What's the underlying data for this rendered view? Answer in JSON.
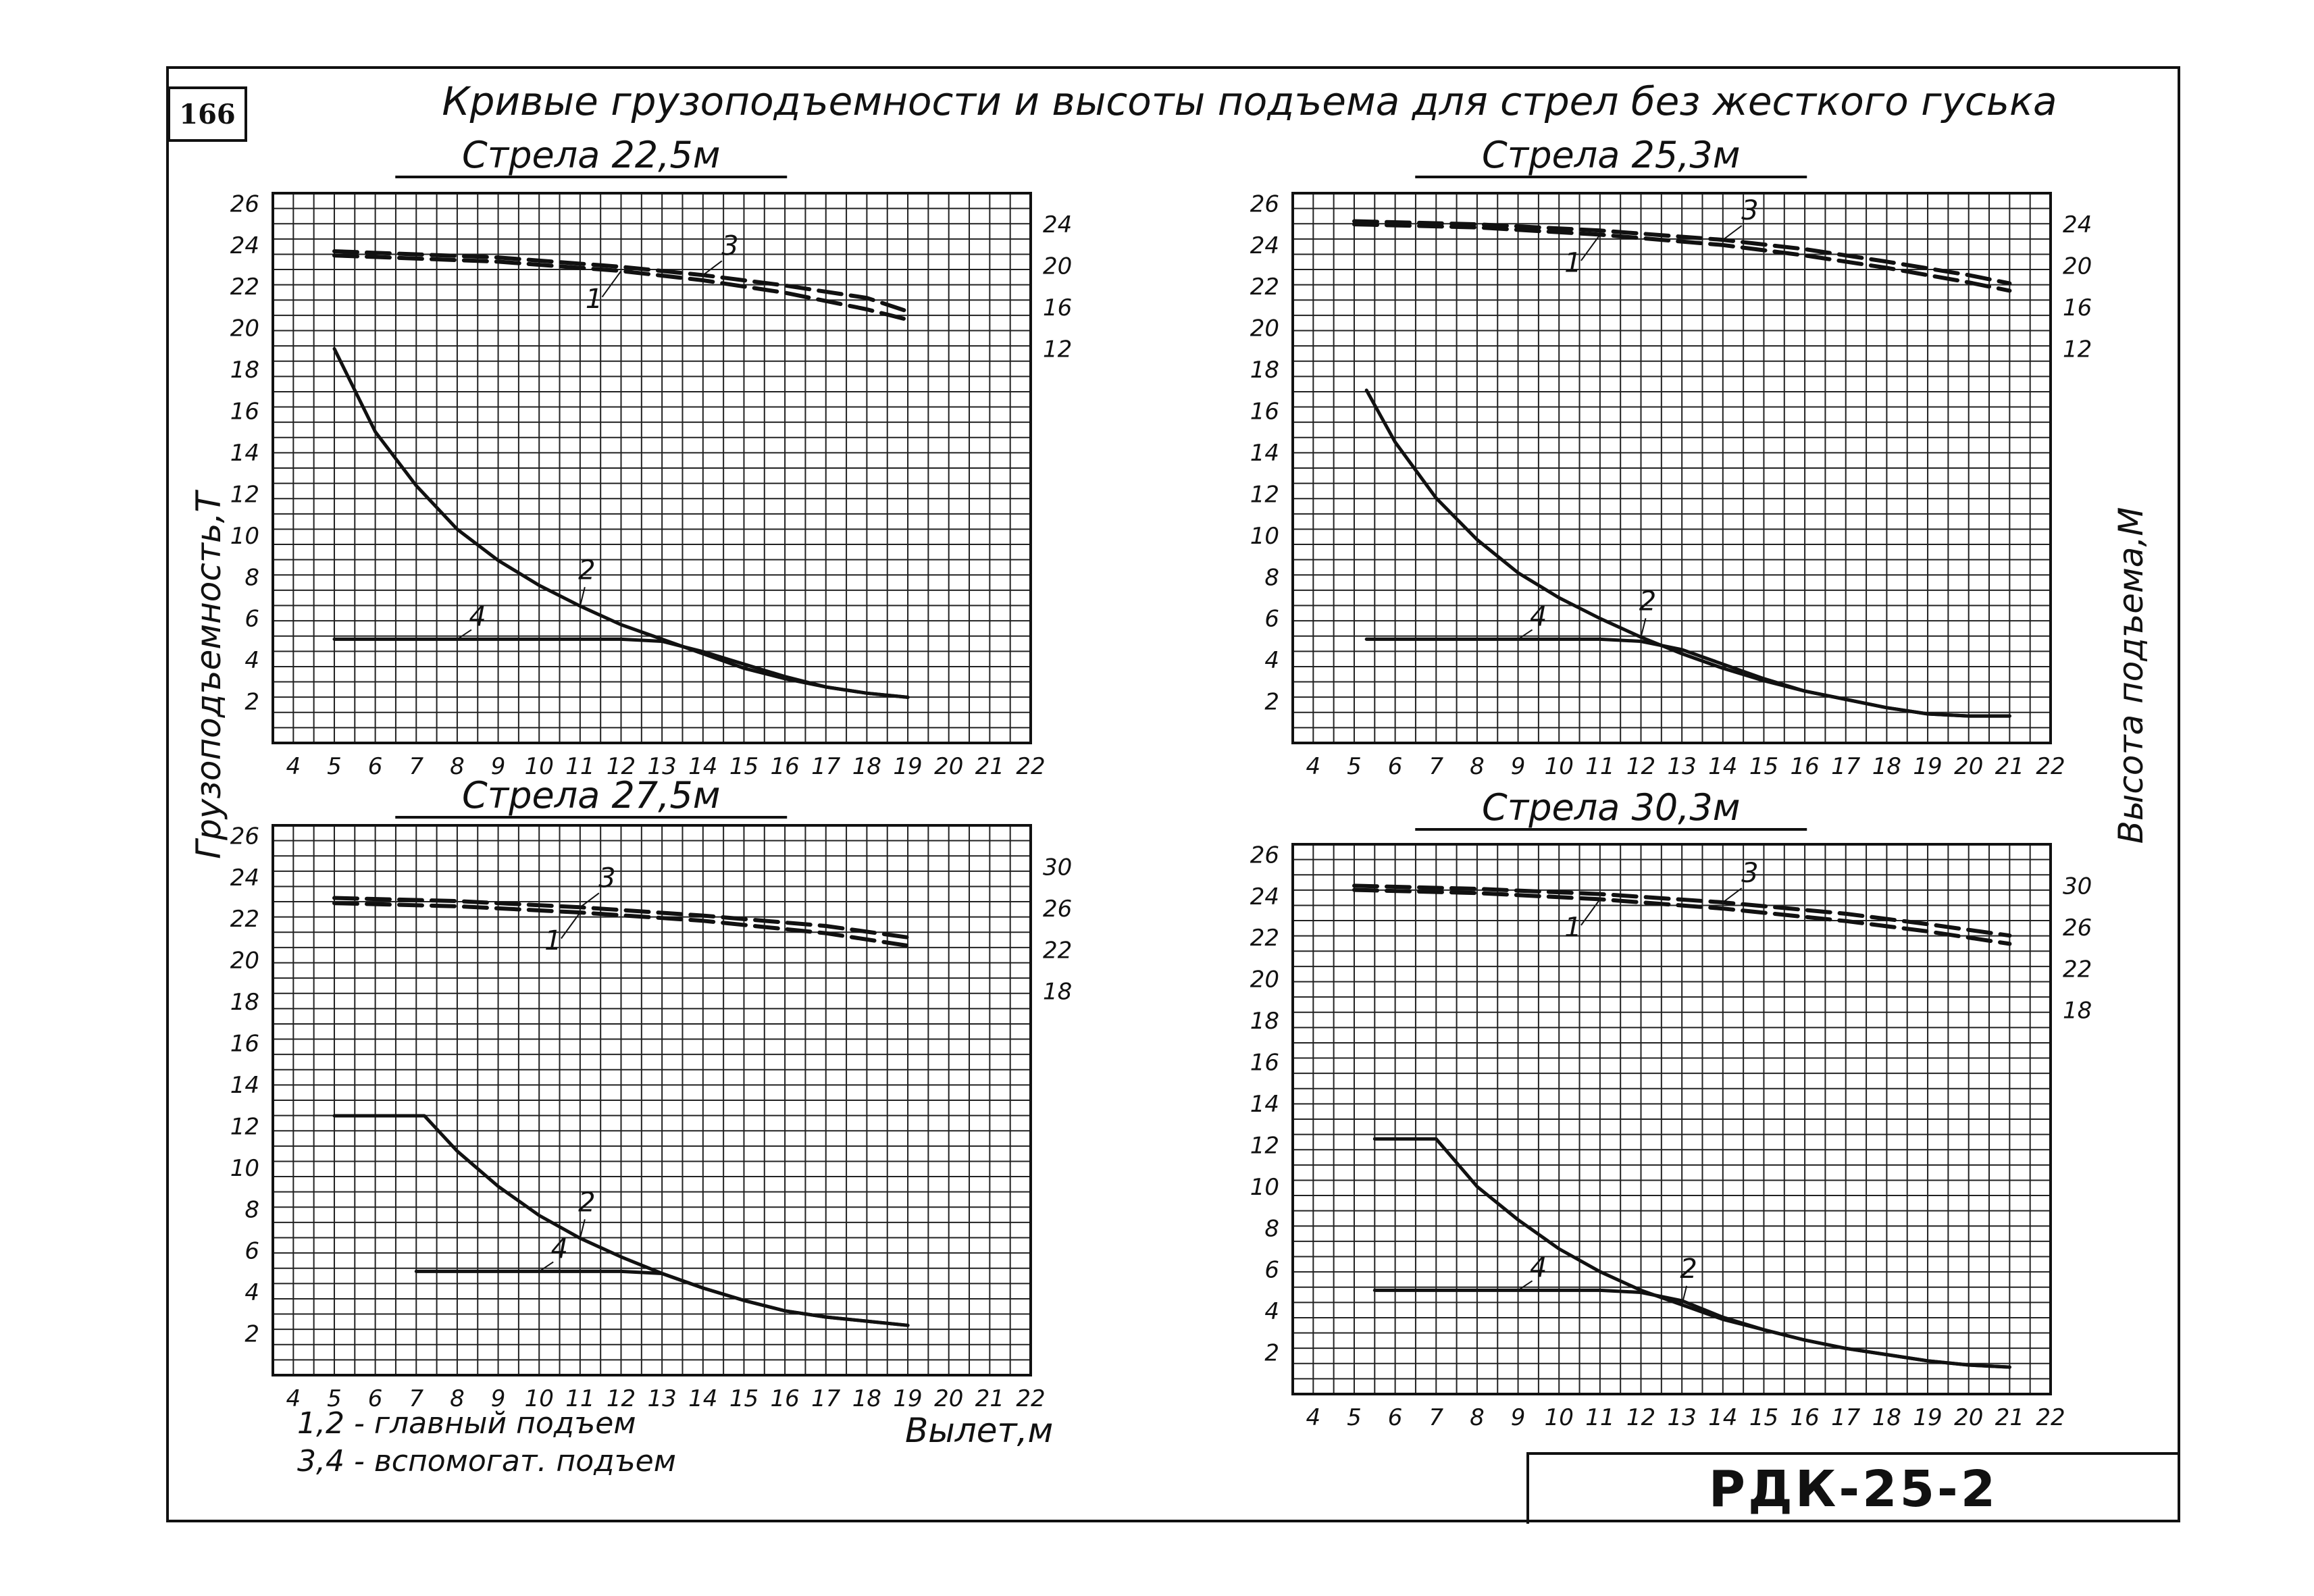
{
  "sheet": {
    "page_number": "166",
    "title": "Кривые грузоподъемности и высоты подъема для стрел без жесткого гуська",
    "left_axis_label": "Грузоподъемность,Т",
    "right_axis_label": "Высота подъема,М",
    "x_axis_label": "Вылет,м",
    "legend_lines": [
      "1,2 - главный подъем",
      "3,4 - вспомогат. подъем"
    ],
    "drawing_code": "РДК-25-2"
  },
  "chart_data": [
    {
      "type": "line",
      "title": "Стрела 22,5м",
      "x_ticks": [
        "4",
        "5",
        "6",
        "7",
        "8",
        "9",
        "10",
        "11",
        "12",
        "13",
        "14",
        "15",
        "16",
        "17",
        "18",
        "19",
        "20",
        "21",
        "22"
      ],
      "xlim": [
        3.5,
        22
      ],
      "y_left_ticks": [
        "2",
        "4",
        "6",
        "8",
        "10",
        "12",
        "14",
        "16",
        "18",
        "20",
        "22",
        "24",
        "26"
      ],
      "ylim_left": [
        0,
        26.5
      ],
      "y_right_ticks": [
        "12",
        "16",
        "20",
        "24"
      ],
      "ylim_right": [
        -26,
        27
      ],
      "grid": true,
      "series": [
        {
          "name": "1",
          "axis": "right",
          "dash": true,
          "x": [
            5,
            9,
            12,
            14,
            16,
            18,
            19
          ],
          "y": [
            21,
            20.4,
            19.5,
            18.6,
            17.4,
            15.8,
            14.8
          ]
        },
        {
          "name": "3",
          "axis": "right",
          "dash": true,
          "x": [
            5,
            9,
            12,
            14,
            16,
            18,
            19
          ],
          "y": [
            21.4,
            20.8,
            19.9,
            19.1,
            18.1,
            16.9,
            15.6
          ]
        },
        {
          "name": "2",
          "axis": "left",
          "dash": false,
          "x": [
            5,
            6,
            7,
            8,
            9,
            10,
            11,
            12,
            13,
            14,
            15,
            16,
            17,
            18,
            19
          ],
          "y": [
            19,
            15,
            12.4,
            10.3,
            8.8,
            7.6,
            6.6,
            5.7,
            5,
            4.3,
            3.6,
            3.1,
            2.7,
            2.4,
            2.2
          ]
        },
        {
          "name": "4",
          "axis": "left",
          "dash": false,
          "x": [
            5,
            8,
            10,
            12,
            13,
            14,
            15,
            16,
            17,
            18,
            19
          ],
          "y": [
            5,
            5,
            5,
            5,
            4.9,
            4.4,
            3.8,
            3.2,
            2.7,
            2.4,
            2.2
          ]
        }
      ],
      "annotations": [
        "1",
        "2",
        "3",
        "4"
      ]
    },
    {
      "type": "line",
      "title": "Стрела 25,3м",
      "x_ticks": [
        "4",
        "5",
        "6",
        "7",
        "8",
        "9",
        "10",
        "11",
        "12",
        "13",
        "14",
        "15",
        "16",
        "17",
        "18",
        "19",
        "20",
        "21",
        "22"
      ],
      "xlim": [
        3.5,
        22
      ],
      "y_left_ticks": [
        "2",
        "4",
        "6",
        "8",
        "10",
        "12",
        "14",
        "16",
        "18",
        "20",
        "22",
        "24",
        "26"
      ],
      "ylim_left": [
        0,
        26.5
      ],
      "y_right_ticks": [
        "12",
        "16",
        "20",
        "24"
      ],
      "ylim_right": [
        -26,
        27
      ],
      "grid": true,
      "series": [
        {
          "name": "1",
          "axis": "right",
          "dash": true,
          "x": [
            5,
            8,
            11,
            14,
            16,
            18,
            20,
            21
          ],
          "y": [
            24,
            23.7,
            23,
            22,
            21,
            19.8,
            18.4,
            17.6
          ]
        },
        {
          "name": "3",
          "axis": "right",
          "dash": true,
          "x": [
            5,
            8,
            11,
            14,
            16,
            18,
            20,
            21
          ],
          "y": [
            24.3,
            24,
            23.4,
            22.5,
            21.6,
            20.4,
            19.1,
            18.3
          ]
        },
        {
          "name": "2",
          "axis": "left",
          "dash": false,
          "x": [
            5.3,
            6,
            7,
            8,
            9,
            10,
            11,
            12,
            13,
            14,
            15,
            16,
            17,
            18,
            19,
            20,
            21
          ],
          "y": [
            17,
            14.5,
            11.8,
            9.8,
            8.2,
            7,
            6,
            5.1,
            4.3,
            3.6,
            3,
            2.5,
            2.1,
            1.7,
            1.4,
            1.3,
            1.3
          ]
        },
        {
          "name": "4",
          "axis": "left",
          "dash": false,
          "x": [
            5.3,
            9,
            11,
            12,
            13,
            14,
            15,
            16,
            17,
            18,
            19,
            20,
            21
          ],
          "y": [
            5,
            5,
            5,
            4.9,
            4.5,
            3.8,
            3.1,
            2.5,
            2.1,
            1.7,
            1.4,
            1.3,
            1.3
          ]
        }
      ],
      "annotations": [
        "1",
        "2",
        "3",
        "4"
      ]
    },
    {
      "type": "line",
      "title": "Стрела 27,5м",
      "x_ticks": [
        "4",
        "5",
        "6",
        "7",
        "8",
        "9",
        "10",
        "11",
        "12",
        "13",
        "14",
        "15",
        "16",
        "17",
        "18",
        "19",
        "20",
        "21",
        "22"
      ],
      "xlim": [
        3.5,
        22
      ],
      "y_left_ticks": [
        "2",
        "4",
        "6",
        "8",
        "10",
        "12",
        "14",
        "16",
        "18",
        "20",
        "22",
        "24",
        "26"
      ],
      "ylim_left": [
        0,
        26.5
      ],
      "y_right_ticks": [
        "18",
        "22",
        "26",
        "30"
      ],
      "ylim_right": [
        -19,
        34
      ],
      "grid": true,
      "series": [
        {
          "name": "1",
          "axis": "right",
          "dash": true,
          "x": [
            5,
            8,
            11,
            14,
            17,
            19
          ],
          "y": [
            26.5,
            26.2,
            25.6,
            24.8,
            23.6,
            22.4
          ]
        },
        {
          "name": "3",
          "axis": "right",
          "dash": true,
          "x": [
            5,
            8,
            11,
            14,
            17,
            19
          ],
          "y": [
            27,
            26.7,
            26.1,
            25.3,
            24.3,
            23.2
          ]
        },
        {
          "name": "2",
          "axis": "left",
          "dash": false,
          "x": [
            5,
            7,
            7.2,
            8,
            9,
            10,
            11,
            12,
            13,
            14,
            15,
            16,
            17,
            18,
            19
          ],
          "y": [
            12.5,
            12.5,
            12.5,
            10.8,
            9.1,
            7.7,
            6.6,
            5.7,
            4.9,
            4.2,
            3.6,
            3.1,
            2.8,
            2.6,
            2.4
          ]
        },
        {
          "name": "4",
          "axis": "left",
          "dash": false,
          "x": [
            7,
            10,
            12,
            13,
            14,
            15,
            16,
            17,
            18,
            19
          ],
          "y": [
            5,
            5,
            5,
            4.9,
            4.2,
            3.6,
            3.1,
            2.8,
            2.6,
            2.4
          ]
        }
      ],
      "annotations": [
        "1",
        "2",
        "3",
        "4"
      ]
    },
    {
      "type": "line",
      "title": "Стрела 30,3м",
      "x_ticks": [
        "4",
        "5",
        "6",
        "7",
        "8",
        "9",
        "10",
        "11",
        "12",
        "13",
        "14",
        "15",
        "16",
        "17",
        "18",
        "19",
        "20",
        "21",
        "22"
      ],
      "xlim": [
        3.5,
        22
      ],
      "y_left_ticks": [
        "2",
        "4",
        "6",
        "8",
        "10",
        "12",
        "14",
        "16",
        "18",
        "20",
        "22",
        "24",
        "26"
      ],
      "ylim_left": [
        0,
        26.5
      ],
      "y_right_ticks": [
        "18",
        "22",
        "26",
        "30"
      ],
      "ylim_right": [
        -19,
        34
      ],
      "grid": true,
      "series": [
        {
          "name": "1",
          "axis": "right",
          "dash": true,
          "x": [
            5,
            8,
            11,
            14,
            17,
            19,
            21
          ],
          "y": [
            29.6,
            29.3,
            28.7,
            27.8,
            26.6,
            25.6,
            24.4
          ]
        },
        {
          "name": "3",
          "axis": "right",
          "dash": true,
          "x": [
            5,
            8,
            11,
            14,
            17,
            19,
            21
          ],
          "y": [
            30,
            29.7,
            29.2,
            28.4,
            27.3,
            26.3,
            25.2
          ]
        },
        {
          "name": "2",
          "axis": "left",
          "dash": false,
          "x": [
            5.5,
            7,
            8,
            9,
            10,
            11,
            12,
            13,
            14,
            15,
            16,
            17,
            18,
            19,
            20,
            21
          ],
          "y": [
            12.3,
            12.3,
            10,
            8.4,
            7,
            5.9,
            5,
            4.3,
            3.6,
            3.1,
            2.6,
            2.2,
            1.9,
            1.6,
            1.4,
            1.3
          ]
        },
        {
          "name": "4",
          "axis": "left",
          "dash": false,
          "x": [
            5.5,
            9,
            11,
            12,
            13,
            14,
            15,
            16,
            17,
            18,
            19,
            20,
            21
          ],
          "y": [
            5,
            5,
            5,
            4.9,
            4.5,
            3.7,
            3.1,
            2.6,
            2.2,
            1.9,
            1.6,
            1.4,
            1.3
          ]
        }
      ],
      "annotations": [
        "1",
        "2",
        "3",
        "4"
      ]
    }
  ]
}
